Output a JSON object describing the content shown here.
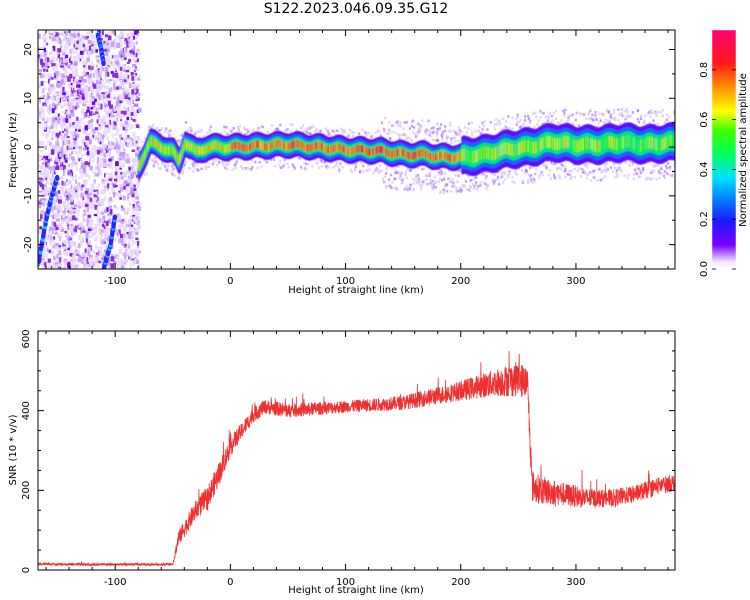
{
  "figure": {
    "title": "S122.2023.046.09.35.G12"
  },
  "chart_data": [
    {
      "type": "heatmap",
      "xlabel": "Height of straight line (km)",
      "ylabel": "Frequency (Hz)",
      "xlim": [
        -167,
        386
      ],
      "ylim": [
        -25,
        24
      ],
      "xticks": [
        -100,
        0,
        100,
        200,
        300
      ],
      "yticks": [
        -20,
        -10,
        0,
        10,
        20
      ],
      "colorbar": {
        "label": "Normalized spectral amplitude",
        "range": [
          0,
          0.96
        ],
        "ticks": [
          0.0,
          0.2,
          0.4,
          0.6,
          0.8
        ],
        "colormap": "rainbow (purple-blue-cyan-green-yellow-orange-red-magenta)"
      },
      "noise_region": {
        "x_from": -167,
        "x_to": -80
      },
      "ridge_center_hz": {
        "x": [
          -80,
          -70,
          -60,
          -50,
          -45,
          -40,
          -30,
          -20,
          0,
          50,
          100,
          130,
          150,
          170,
          180,
          200,
          220,
          240,
          260,
          280,
          300,
          320,
          340,
          360,
          386
        ],
        "y": [
          -4,
          1,
          0,
          -1,
          -3,
          1,
          -1,
          0,
          0,
          0.5,
          -0.5,
          -0.8,
          -1.5,
          -1.5,
          -2,
          -2,
          -1.5,
          -0.5,
          0,
          1,
          0.5,
          0.5,
          1,
          0.5,
          1
        ]
      },
      "ridge_peak_amplitude": 0.9,
      "grid": false
    },
    {
      "type": "line",
      "xlabel": "Height of straight line (km)",
      "ylabel": "SNR (10 * v/v)",
      "xlim": [
        -167,
        386
      ],
      "ylim": [
        0,
        600
      ],
      "xticks": [
        -100,
        0,
        100,
        200,
        300
      ],
      "yticks": [
        0,
        200,
        400,
        600
      ],
      "series": [
        {
          "color": "#f03030",
          "trend_x": [
            -167,
            -120,
            -60,
            -50,
            -45,
            -30,
            -20,
            -10,
            0,
            10,
            20,
            30,
            50,
            100,
            150,
            200,
            230,
            250,
            258,
            262,
            270,
            290,
            310,
            330,
            350,
            370,
            386
          ],
          "trend_y": [
            15,
            14,
            14,
            15,
            80,
            150,
            180,
            240,
            310,
            350,
            390,
            410,
            400,
            410,
            420,
            450,
            470,
            480,
            470,
            210,
            200,
            190,
            180,
            180,
            190,
            210,
            220
          ],
          "noise_amplitude": [
            3,
            3,
            3,
            3,
            20,
            25,
            30,
            30,
            25,
            20,
            20,
            18,
            18,
            15,
            18,
            25,
            35,
            45,
            40,
            40,
            35,
            30,
            25,
            22,
            22,
            22,
            22
          ]
        }
      ],
      "grid": false
    }
  ]
}
